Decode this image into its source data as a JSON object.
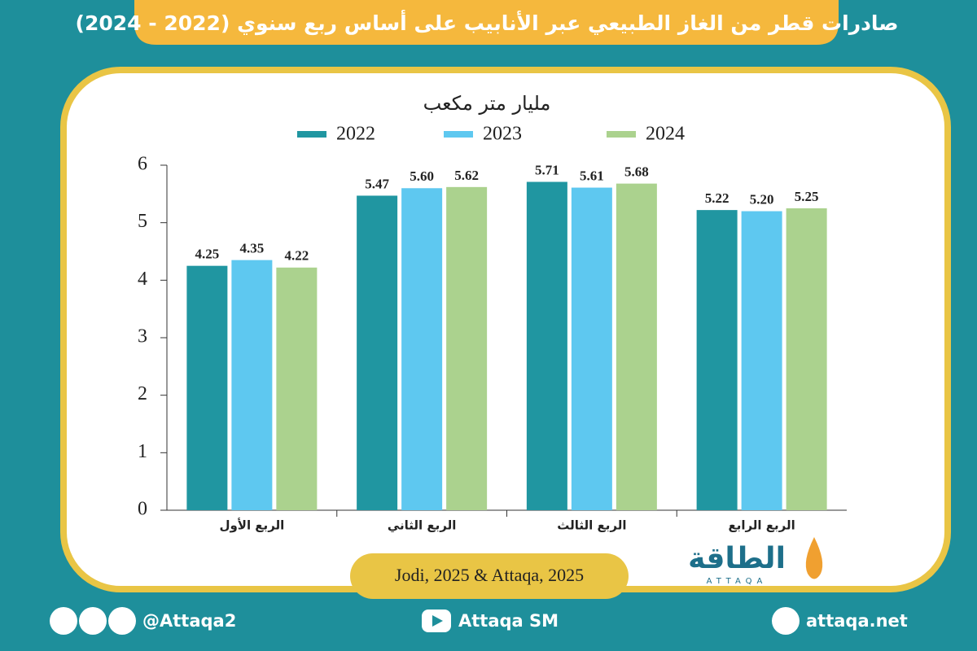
{
  "chart_data": {
    "type": "bar",
    "title": "صادرات قطر من الغاز الطبيعي عبر الأنابيب على أساس ربع سنوي (2022 - 2024)",
    "y_axis_label": "مليار متر مكعب",
    "categories": [
      "الربع الأول",
      "الربع الثاني",
      "الربع الثالث",
      "الربع الرابع"
    ],
    "series": [
      {
        "name": "2022",
        "color": "#2096a1",
        "values": [
          4.25,
          5.47,
          5.71,
          5.22
        ],
        "value_labels": [
          "4.25",
          "5.47",
          "5.71",
          "5.22"
        ]
      },
      {
        "name": "2023",
        "color": "#5ec8f0",
        "values": [
          4.35,
          5.6,
          5.61,
          5.2
        ],
        "value_labels": [
          "4.35",
          "5.60",
          "5.61",
          "5.20"
        ]
      },
      {
        "name": "2024",
        "color": "#abd28e",
        "values": [
          4.22,
          5.62,
          5.68,
          5.25
        ],
        "value_labels": [
          "4.22",
          "5.62",
          "5.68",
          "5.25"
        ]
      }
    ],
    "ylim": [
      0,
      6
    ],
    "yticks": [
      0,
      1,
      2,
      3,
      4,
      5,
      6
    ],
    "grid": false,
    "source": "Jodi, 2025 & Attaqa, 2025"
  },
  "logo": {
    "arabic": "الطاقة",
    "latin": "ATTAQA"
  },
  "footer": {
    "social_handle": "@Attaqa2",
    "youtube": "Attaqa SM",
    "website": "attaqa.net"
  }
}
